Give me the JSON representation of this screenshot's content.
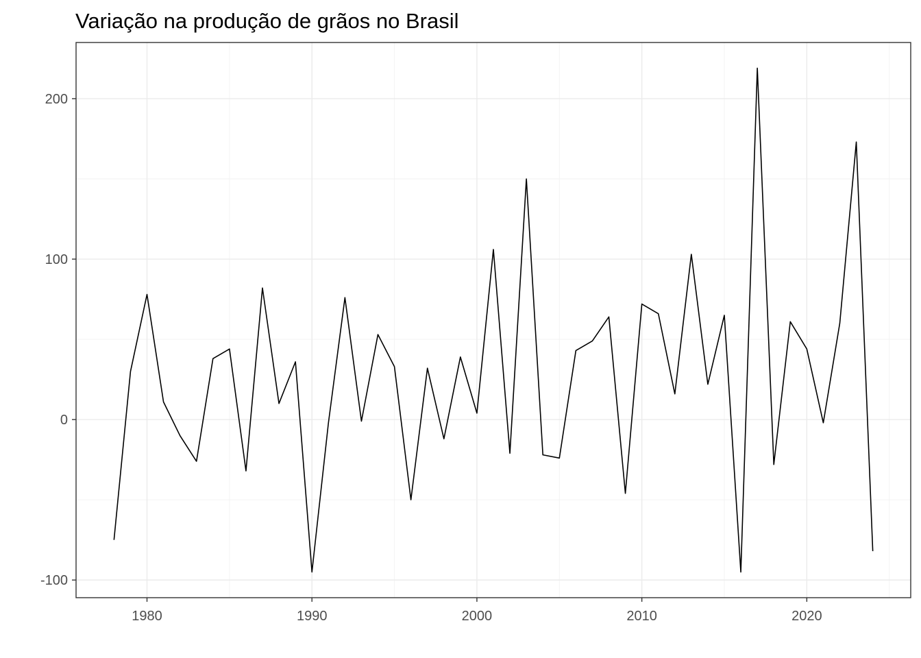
{
  "chart_data": {
    "type": "line",
    "title": "Variação na produção de grãos no Brasil",
    "xlabel": "",
    "ylabel": "",
    "xlim": [
      1975.7,
      2026.3
    ],
    "ylim": [
      -111,
      235
    ],
    "x_ticks": [
      1980,
      1990,
      2000,
      2010,
      2020
    ],
    "y_ticks": [
      -100,
      0,
      100,
      200
    ],
    "x_tick_labels": [
      "1980",
      "1990",
      "2000",
      "2010",
      "2020"
    ],
    "y_tick_labels": [
      "-100",
      "0",
      "100",
      "200"
    ],
    "grid": true,
    "legend": "none",
    "series": [
      {
        "color": "#000000",
        "x": [
          1978,
          1979,
          1980,
          1981,
          1982,
          1983,
          1984,
          1985,
          1986,
          1987,
          1988,
          1989,
          1990,
          1991,
          1992,
          1993,
          1994,
          1995,
          1996,
          1997,
          1998,
          1999,
          2000,
          2001,
          2002,
          2003,
          2004,
          2005,
          2006,
          2007,
          2008,
          2009,
          2010,
          2011,
          2012,
          2013,
          2014,
          2015,
          2016,
          2017,
          2018,
          2019,
          2020,
          2021,
          2022,
          2023,
          2024
        ],
        "values": [
          -75,
          30,
          78,
          11,
          -10,
          -26,
          38,
          44,
          -32,
          82,
          10,
          36,
          -95,
          -2,
          76,
          -1,
          53,
          33,
          -50,
          32,
          -12,
          39,
          4,
          106,
          -21,
          150,
          -22,
          -24,
          43,
          49,
          64,
          -46,
          72,
          66,
          16,
          103,
          22,
          65,
          -95,
          219,
          -28,
          61,
          44,
          -2,
          60,
          173,
          -82
        ]
      }
    ]
  }
}
